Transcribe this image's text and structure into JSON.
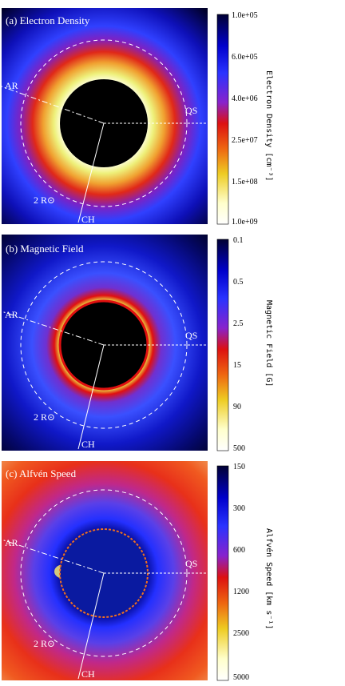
{
  "panels": [
    {
      "title": "(a) Electron Density",
      "colorbar_label": "Electron Density [cm⁻³]",
      "colorbar_ticks": [
        "1.0e+05",
        "6.0e+05",
        "4.0e+06",
        "2.5e+07",
        "1.5e+08",
        "1.0e+09"
      ],
      "labels": {
        "ar": "AR",
        "qs": "QS",
        "ch": "CH",
        "radius": "2 R⊙"
      },
      "style": "density"
    },
    {
      "title": "(b) Magnetic Field",
      "colorbar_label": "Magnetic Field [G]",
      "colorbar_ticks": [
        "0.1",
        "0.5",
        "2.5",
        "15",
        "90",
        "500"
      ],
      "labels": {
        "ar": "AR",
        "qs": "QS",
        "ch": "CH",
        "radius": "2 R⊙"
      },
      "style": "field"
    },
    {
      "title": "(c) Alfvén Speed",
      "colorbar_label": "Alfvén Speed [km s⁻¹]",
      "colorbar_ticks": [
        "150",
        "300",
        "600",
        "1200",
        "2500",
        "5000"
      ],
      "labels": {
        "ar": "AR",
        "qs": "QS",
        "ch": "CH",
        "radius": "2 R⊙"
      },
      "style": "speed"
    }
  ],
  "chart_data": [
    {
      "type": "heatmap",
      "title": "(a) Electron Density",
      "colorbar": {
        "label": "Electron Density [cm⁻³]",
        "ticks": [
          100000,
          600000,
          4000000,
          25000000,
          150000000,
          1000000000
        ],
        "scale": "log"
      },
      "annotations": [
        "AR",
        "QS",
        "CH",
        "2 R⊙"
      ]
    },
    {
      "type": "heatmap",
      "title": "(b) Magnetic Field",
      "colorbar": {
        "label": "Magnetic Field [G]",
        "ticks": [
          0.1,
          0.5,
          2.5,
          15,
          90,
          500
        ],
        "scale": "log"
      },
      "annotations": [
        "AR",
        "QS",
        "CH",
        "2 R⊙"
      ]
    },
    {
      "type": "heatmap",
      "title": "(c) Alfvén Speed",
      "colorbar": {
        "label": "Alfvén Speed [km s⁻¹]",
        "ticks": [
          150,
          300,
          600,
          1200,
          2500,
          5000
        ],
        "scale": "log"
      },
      "annotations": [
        "AR",
        "QS",
        "CH",
        "2 R⊙"
      ]
    }
  ],
  "colors": {
    "scale": [
      "#000033",
      "#0000cc",
      "#2233ff",
      "#8822cc",
      "#dd1111",
      "#ee6611",
      "#eecc22",
      "#ffffcc",
      "#ffffff"
    ]
  }
}
